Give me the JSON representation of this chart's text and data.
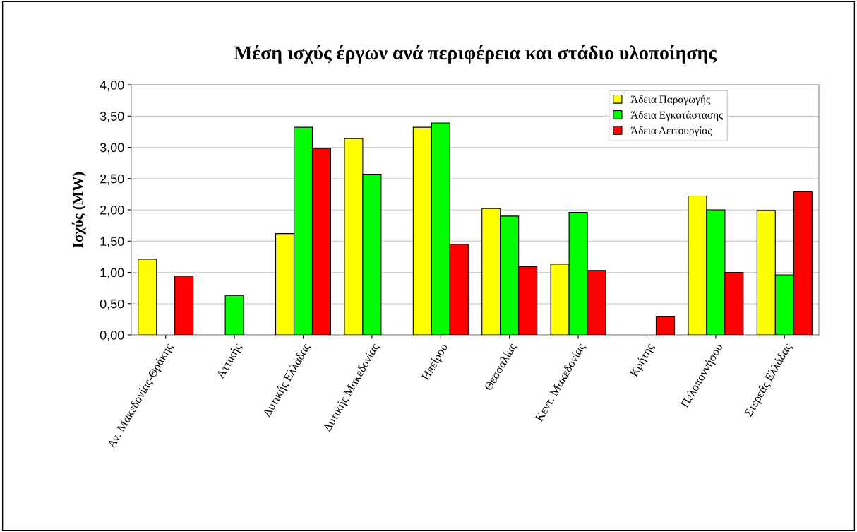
{
  "chart_data": {
    "type": "bar",
    "title": "Μέση ισχύς έργων ανά περιφέρεια και στάδιο υλοποίησης",
    "ylabel": "Ισχύς (MW)",
    "categories": [
      "Αν. Μακεδονίας-Θράκης",
      "Αττικής",
      "Δυτικής Ελλάδας",
      "Δυτικής Μακεδονίας",
      "Ηπείρου",
      "Θεσσαλίας",
      "Κεντ. Μακεδονίας",
      "Κρήτης",
      "Πελοποννήσου",
      "Στερεάς Ελλάδας"
    ],
    "series": [
      {
        "name": "Άδεια Παραγωγής",
        "color": "#ffff00",
        "values": [
          1.21,
          null,
          1.62,
          3.14,
          3.32,
          2.02,
          1.13,
          null,
          2.22,
          1.99
        ]
      },
      {
        "name": "Άδεια Εγκατάστασης",
        "color": "#00ff00",
        "values": [
          null,
          0.63,
          3.32,
          2.57,
          3.39,
          1.9,
          1.96,
          null,
          2.0,
          0.96
        ]
      },
      {
        "name": "Άδεια Λειτουργίας",
        "color": "#ff0000",
        "values": [
          0.94,
          null,
          2.98,
          null,
          1.45,
          1.09,
          1.03,
          0.3,
          1.0,
          2.29
        ]
      }
    ],
    "ylim": [
      0,
      4
    ],
    "yticks": [
      {
        "value": 0,
        "label": "0,00"
      },
      {
        "value": 0.5,
        "label": "0,50"
      },
      {
        "value": 1,
        "label": "1,00"
      },
      {
        "value": 1.5,
        "label": "1,50"
      },
      {
        "value": 2,
        "label": "2,00"
      },
      {
        "value": 2.5,
        "label": "2,50"
      },
      {
        "value": 3,
        "label": "3,00"
      },
      {
        "value": 3.5,
        "label": "3,50"
      },
      {
        "value": 4,
        "label": "4,00"
      }
    ],
    "grid": "y",
    "legend": "top right"
  }
}
